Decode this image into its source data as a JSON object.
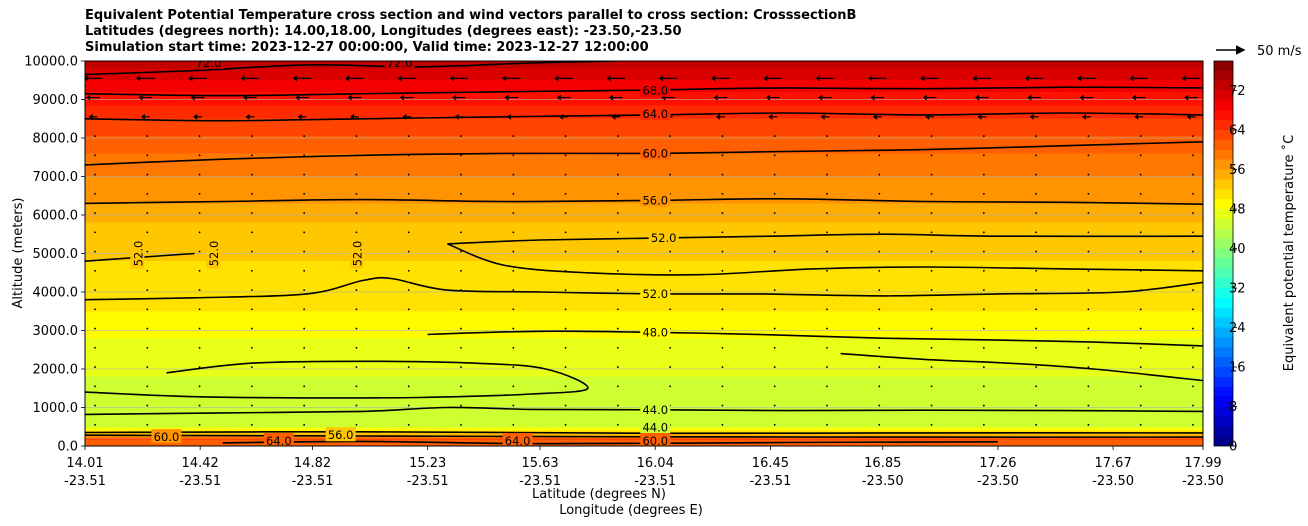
{
  "chart_data": {
    "type": "heatmap",
    "title_lines": [
      "Equivalent Potential Temperature cross section and wind vectors parallel to cross section: CrosssectionB",
      "Latitudes (degrees north): 14.00,18.00, Longitudes (degrees east): -23.50,-23.50",
      "Simulation start time: 2023-12-27 00:00:00, Valid time: 2023-12-27 12:00:00"
    ],
    "xlabel": "Latitude (degrees N)",
    "xlabel2": "Longitude (degrees E)",
    "ylabel": "Altitude (meters)",
    "ylim": [
      0,
      10000
    ],
    "yticks": [
      "0.0",
      "1000.0",
      "2000.0",
      "3000.0",
      "4000.0",
      "5000.0",
      "6000.0",
      "7000.0",
      "8000.0",
      "9000.0",
      "10000.0"
    ],
    "xlim": [
      14.01,
      17.99
    ],
    "xticks": [
      {
        "value": 14.01,
        "lat": "14.01",
        "lon": "-23.51"
      },
      {
        "value": 14.42,
        "lat": "14.42",
        "lon": "-23.51"
      },
      {
        "value": 14.82,
        "lat": "14.82",
        "lon": "-23.51"
      },
      {
        "value": 15.23,
        "lat": "15.23",
        "lon": "-23.51"
      },
      {
        "value": 15.63,
        "lat": "15.63",
        "lon": "-23.51"
      },
      {
        "value": 16.04,
        "lat": "16.04",
        "lon": "-23.51"
      },
      {
        "value": 16.45,
        "lat": "16.45",
        "lon": "-23.51"
      },
      {
        "value": 16.85,
        "lat": "16.85",
        "lon": "-23.50"
      },
      {
        "value": 17.26,
        "lat": "17.26",
        "lon": "-23.50"
      },
      {
        "value": 17.67,
        "lat": "17.67",
        "lon": "-23.50"
      },
      {
        "value": 17.99,
        "lat": "17.99",
        "lon": "-23.50"
      }
    ],
    "colorbar": {
      "label": "Equivalent potential temperature ˚C",
      "range": [
        0,
        78
      ],
      "ticks": [
        "0",
        "8",
        "16",
        "24",
        "32",
        "40",
        "48",
        "56",
        "64",
        "72"
      ],
      "colormap": "jet"
    },
    "quiver_key": "50 m/s",
    "field_profile": [
      {
        "altitude": 0,
        "theta_e": 60
      },
      {
        "altitude": 150,
        "theta_e": 62
      },
      {
        "altitude": 300,
        "theta_e": 52
      },
      {
        "altitude": 500,
        "theta_e": 45
      },
      {
        "altitude": 900,
        "theta_e": 44
      },
      {
        "altitude": 1500,
        "theta_e": 45.5
      },
      {
        "altitude": 2300,
        "theta_e": 47
      },
      {
        "altitude": 3000,
        "theta_e": 48.5
      },
      {
        "altitude": 3800,
        "theta_e": 51
      },
      {
        "altitude": 4800,
        "theta_e": 52
      },
      {
        "altitude": 5800,
        "theta_e": 54
      },
      {
        "altitude": 6300,
        "theta_e": 56
      },
      {
        "altitude": 7000,
        "theta_e": 58
      },
      {
        "altitude": 7600,
        "theta_e": 60
      },
      {
        "altitude": 8500,
        "theta_e": 64
      },
      {
        "altitude": 9200,
        "theta_e": 68
      },
      {
        "altitude": 9800,
        "theta_e": 72
      },
      {
        "altitude": 10000,
        "theta_e": 74
      }
    ],
    "contours": [
      {
        "level": 44,
        "label": "44.0",
        "points": [
          [
            14.01,
            820
          ],
          [
            14.5,
            860
          ],
          [
            15.0,
            900
          ],
          [
            15.3,
            1000
          ],
          [
            15.6,
            950
          ],
          [
            16.04,
            940
          ],
          [
            16.5,
            920
          ],
          [
            17.0,
            930
          ],
          [
            17.5,
            920
          ],
          [
            17.99,
            900
          ]
        ]
      },
      {
        "level": 44,
        "label": "44.0",
        "points": [
          [
            14.01,
            1400
          ],
          [
            14.4,
            1280
          ],
          [
            14.8,
            1250
          ],
          [
            15.2,
            1260
          ],
          [
            15.6,
            1350
          ],
          [
            15.8,
            1500
          ],
          [
            15.65,
            2000
          ],
          [
            15.4,
            2150
          ],
          [
            15.0,
            2200
          ],
          [
            14.6,
            2150
          ],
          [
            14.3,
            1900
          ]
        ]
      },
      {
        "level": 48,
        "label": "48.0",
        "points": [
          [
            15.23,
            2900
          ],
          [
            15.63,
            2980
          ],
          [
            16.04,
            2950
          ],
          [
            16.4,
            2900
          ],
          [
            16.85,
            2800
          ],
          [
            17.26,
            2750
          ],
          [
            17.6,
            2700
          ],
          [
            17.99,
            2600
          ]
        ]
      },
      {
        "level": 48,
        "label": "48.0",
        "points": [
          [
            16.7,
            2400
          ],
          [
            17.0,
            2250
          ],
          [
            17.3,
            2150
          ],
          [
            17.6,
            2000
          ],
          [
            17.99,
            1700
          ]
        ]
      },
      {
        "level": 52,
        "label": "52.0",
        "points": [
          [
            14.01,
            3800
          ],
          [
            14.4,
            3850
          ],
          [
            14.8,
            3950
          ],
          [
            15.0,
            4300
          ],
          [
            15.1,
            4350
          ],
          [
            15.3,
            4050
          ],
          [
            15.63,
            4000
          ],
          [
            16.04,
            3950
          ],
          [
            16.4,
            3950
          ],
          [
            16.85,
            3900
          ],
          [
            17.26,
            3950
          ],
          [
            17.7,
            4000
          ],
          [
            17.99,
            4250
          ]
        ]
      },
      {
        "level": 52,
        "label": "52.0",
        "points": [
          [
            14.01,
            4800
          ],
          [
            14.2,
            4900
          ],
          [
            14.4,
            5000
          ]
        ]
      },
      {
        "level": 52,
        "label": "52.0",
        "points": [
          [
            15.3,
            5250
          ],
          [
            15.63,
            5350
          ],
          [
            16.04,
            5400
          ],
          [
            16.45,
            5450
          ],
          [
            16.85,
            5500
          ],
          [
            17.26,
            5450
          ],
          [
            17.99,
            5450
          ]
        ]
      },
      {
        "level": 52,
        "label": "52.0",
        "points": [
          [
            15.3,
            5250
          ],
          [
            15.5,
            4700
          ],
          [
            15.8,
            4500
          ],
          [
            16.2,
            4450
          ],
          [
            16.6,
            4600
          ],
          [
            17.0,
            4650
          ],
          [
            17.5,
            4600
          ],
          [
            17.99,
            4550
          ]
        ]
      },
      {
        "level": 56,
        "label": "56.0",
        "points": [
          [
            14.01,
            6300
          ],
          [
            14.5,
            6350
          ],
          [
            15.0,
            6400
          ],
          [
            15.5,
            6350
          ],
          [
            16.04,
            6380
          ],
          [
            16.5,
            6420
          ],
          [
            17.0,
            6350
          ],
          [
            17.5,
            6330
          ],
          [
            17.99,
            6280
          ]
        ]
      },
      {
        "level": 60,
        "label": "60.0",
        "points": [
          [
            14.01,
            7300
          ],
          [
            14.5,
            7450
          ],
          [
            15.0,
            7550
          ],
          [
            15.5,
            7600
          ],
          [
            16.04,
            7600
          ],
          [
            16.5,
            7650
          ],
          [
            17.0,
            7700
          ],
          [
            17.5,
            7800
          ],
          [
            17.99,
            7900
          ]
        ]
      },
      {
        "level": 64,
        "label": "64.0",
        "points": [
          [
            14.01,
            8500
          ],
          [
            14.5,
            8450
          ],
          [
            15.0,
            8500
          ],
          [
            15.5,
            8550
          ],
          [
            16.04,
            8600
          ],
          [
            16.5,
            8650
          ],
          [
            17.0,
            8600
          ],
          [
            17.5,
            8650
          ],
          [
            17.99,
            8600
          ]
        ]
      },
      {
        "level": 68,
        "label": "68.0",
        "points": [
          [
            14.01,
            9150
          ],
          [
            14.5,
            9100
          ],
          [
            15.0,
            9150
          ],
          [
            15.5,
            9200
          ],
          [
            16.04,
            9250
          ],
          [
            16.5,
            9300
          ],
          [
            17.0,
            9280
          ],
          [
            17.5,
            9320
          ],
          [
            17.99,
            9300
          ]
        ]
      },
      {
        "level": 72,
        "label": "72.0",
        "points": [
          [
            14.01,
            9650
          ],
          [
            14.4,
            9750
          ],
          [
            14.8,
            9900
          ],
          [
            15.2,
            9850
          ],
          [
            15.6,
            9950
          ],
          [
            15.9,
            10000
          ]
        ]
      },
      {
        "level": 56,
        "label": "56.0",
        "points": [
          [
            14.01,
            350
          ],
          [
            15.0,
            370
          ],
          [
            16.04,
            330
          ],
          [
            17.0,
            340
          ],
          [
            17.99,
            340
          ]
        ]
      },
      {
        "level": 60,
        "label": "60.0",
        "points": [
          [
            14.01,
            280
          ],
          [
            15.0,
            260
          ],
          [
            16.04,
            240
          ],
          [
            17.0,
            230
          ],
          [
            17.99,
            230
          ]
        ]
      },
      {
        "level": 64,
        "label": "64.0",
        "points": [
          [
            14.5,
            80
          ],
          [
            15.0,
            120
          ],
          [
            15.63,
            60
          ],
          [
            16.5,
            90
          ],
          [
            17.26,
            110
          ]
        ]
      }
    ],
    "contour_labels": [
      {
        "text": "72.0",
        "lat": 14.45,
        "alt": 9950
      },
      {
        "text": "72.0",
        "lat": 15.13,
        "alt": 9950
      },
      {
        "text": "68.0",
        "lat": 16.04,
        "alt": 9230
      },
      {
        "text": "64.0",
        "lat": 16.04,
        "alt": 8620
      },
      {
        "text": "60.0",
        "lat": 16.04,
        "alt": 7600
      },
      {
        "text": "56.0",
        "lat": 16.04,
        "alt": 6380
      },
      {
        "text": "52.0",
        "lat": 16.07,
        "alt": 5400
      },
      {
        "text": "52.0",
        "lat": 14.2,
        "alt": 5000,
        "rotate": -90
      },
      {
        "text": "52.0",
        "lat": 14.47,
        "alt": 5000,
        "rotate": -90
      },
      {
        "text": "52.0",
        "lat": 14.98,
        "alt": 5000,
        "rotate": -90
      },
      {
        "text": "52.0",
        "lat": 16.04,
        "alt": 3950
      },
      {
        "text": "48.0",
        "lat": 16.04,
        "alt": 2950
      },
      {
        "text": "44.0",
        "lat": 16.04,
        "alt": 940
      },
      {
        "text": "44.0",
        "lat": 16.04,
        "alt": 480
      },
      {
        "text": "60.0",
        "lat": 16.04,
        "alt": 130
      },
      {
        "text": "64.0",
        "lat": 14.7,
        "alt": 130
      },
      {
        "text": "56.0",
        "lat": 14.92,
        "alt": 280
      },
      {
        "text": "64.0",
        "lat": 15.55,
        "alt": 130
      },
      {
        "text": "60.0",
        "lat": 14.3,
        "alt": 230
      }
    ],
    "wind_vectors": [
      {
        "alt": 9550,
        "u": -9
      },
      {
        "alt": 9050,
        "u": -6
      },
      {
        "alt": 8550,
        "u": -3
      },
      {
        "alt": 8050,
        "u": -0.5
      },
      {
        "alt": 7550,
        "u": 0.3
      },
      {
        "alt": 7050,
        "u": 0.3
      },
      {
        "alt": 6550,
        "u": 0.3
      },
      {
        "alt": 6050,
        "u": 0.3
      },
      {
        "alt": 5550,
        "u": 0.3
      },
      {
        "alt": 5050,
        "u": 0.3
      },
      {
        "alt": 4550,
        "u": 0.3
      },
      {
        "alt": 4050,
        "u": 0.3
      },
      {
        "alt": 3550,
        "u": 0.3
      },
      {
        "alt": 3050,
        "u": 0.3
      },
      {
        "alt": 2550,
        "u": 0.3
      },
      {
        "alt": 2050,
        "u": 0.3
      },
      {
        "alt": 1550,
        "u": 0.3
      },
      {
        "alt": 1050,
        "u": 0.3
      },
      {
        "alt": 550,
        "u": 0.3
      }
    ]
  }
}
